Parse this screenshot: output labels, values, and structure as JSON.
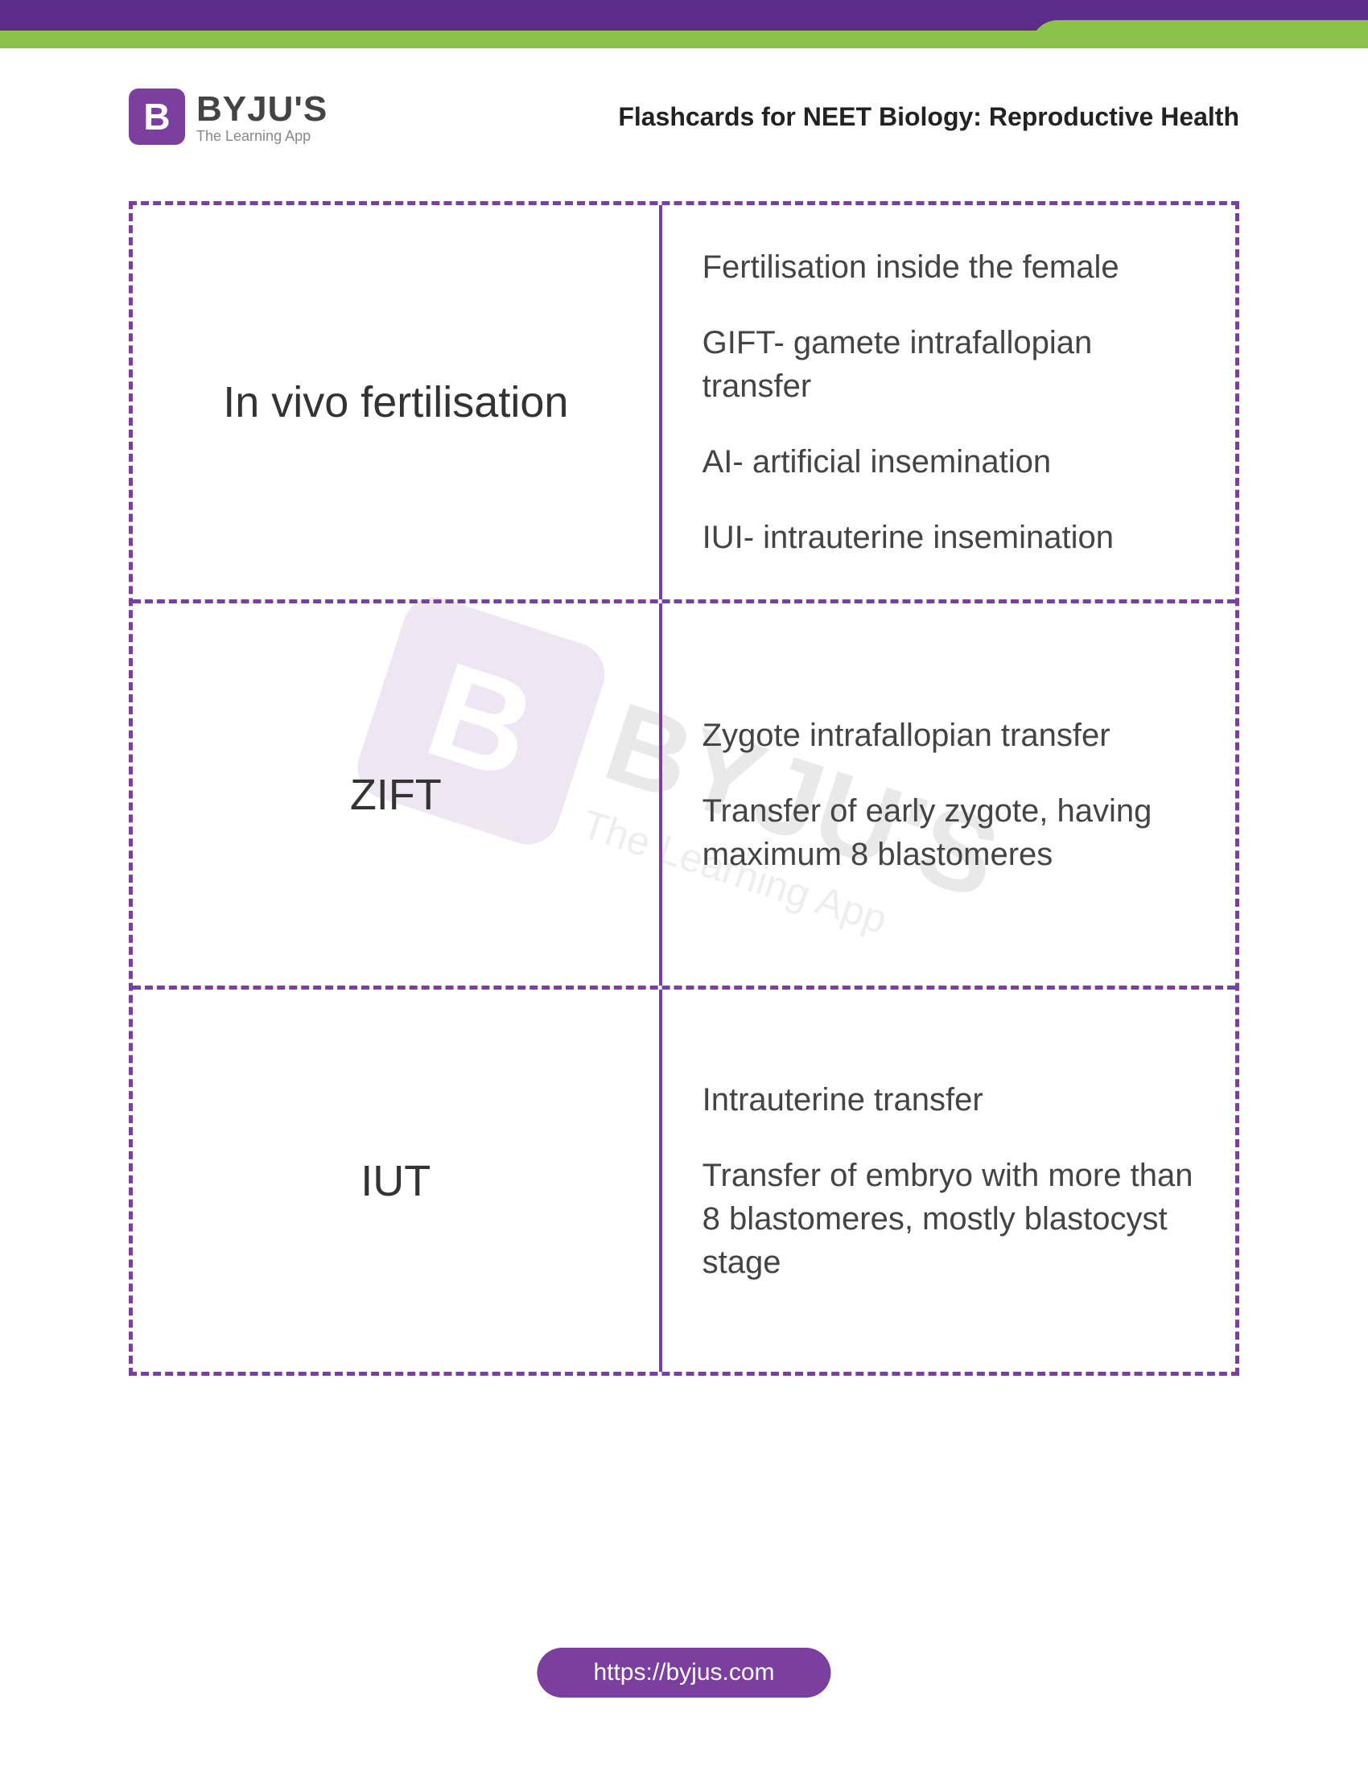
{
  "colors": {
    "brand_purple": "#7b3fa0",
    "banner_purple": "#5b2c89",
    "banner_green": "#8bc34a",
    "text_dark": "#333333",
    "text_body": "#444444",
    "logo_grey": "#444444",
    "logo_sub_grey": "#888888"
  },
  "logo": {
    "badge_letter": "B",
    "main": "BYJU'S",
    "sub": "The Learning App"
  },
  "page_title": "Flashcards for NEET Biology: Reproductive Health",
  "watermark": {
    "badge_letter": "B",
    "main": "BYJU'S",
    "sub": "The Learning App"
  },
  "flashcards": {
    "type": "table",
    "columns": [
      "term",
      "definition"
    ],
    "border_color": "#7b3fa0",
    "border_style": "dashed",
    "term_fontsize": 54,
    "def_fontsize": 40,
    "rows": [
      {
        "term": "In vivo fertilisation",
        "definitions": [
          "Fertilisation inside the female",
          "GIFT- gamete intrafallopian transfer",
          "AI- artificial insemination",
          "IUI- intrauterine insemination"
        ]
      },
      {
        "term": "ZIFT",
        "definitions": [
          "Zygote intrafallopian transfer",
          "Transfer of early zygote, having maximum 8 blastomeres"
        ]
      },
      {
        "term": "IUT",
        "definitions": [
          "Intrauterine transfer",
          "Transfer of embryo with more than 8 blastomeres, mostly blastocyst stage"
        ]
      }
    ]
  },
  "footer_url": "https://byjus.com"
}
